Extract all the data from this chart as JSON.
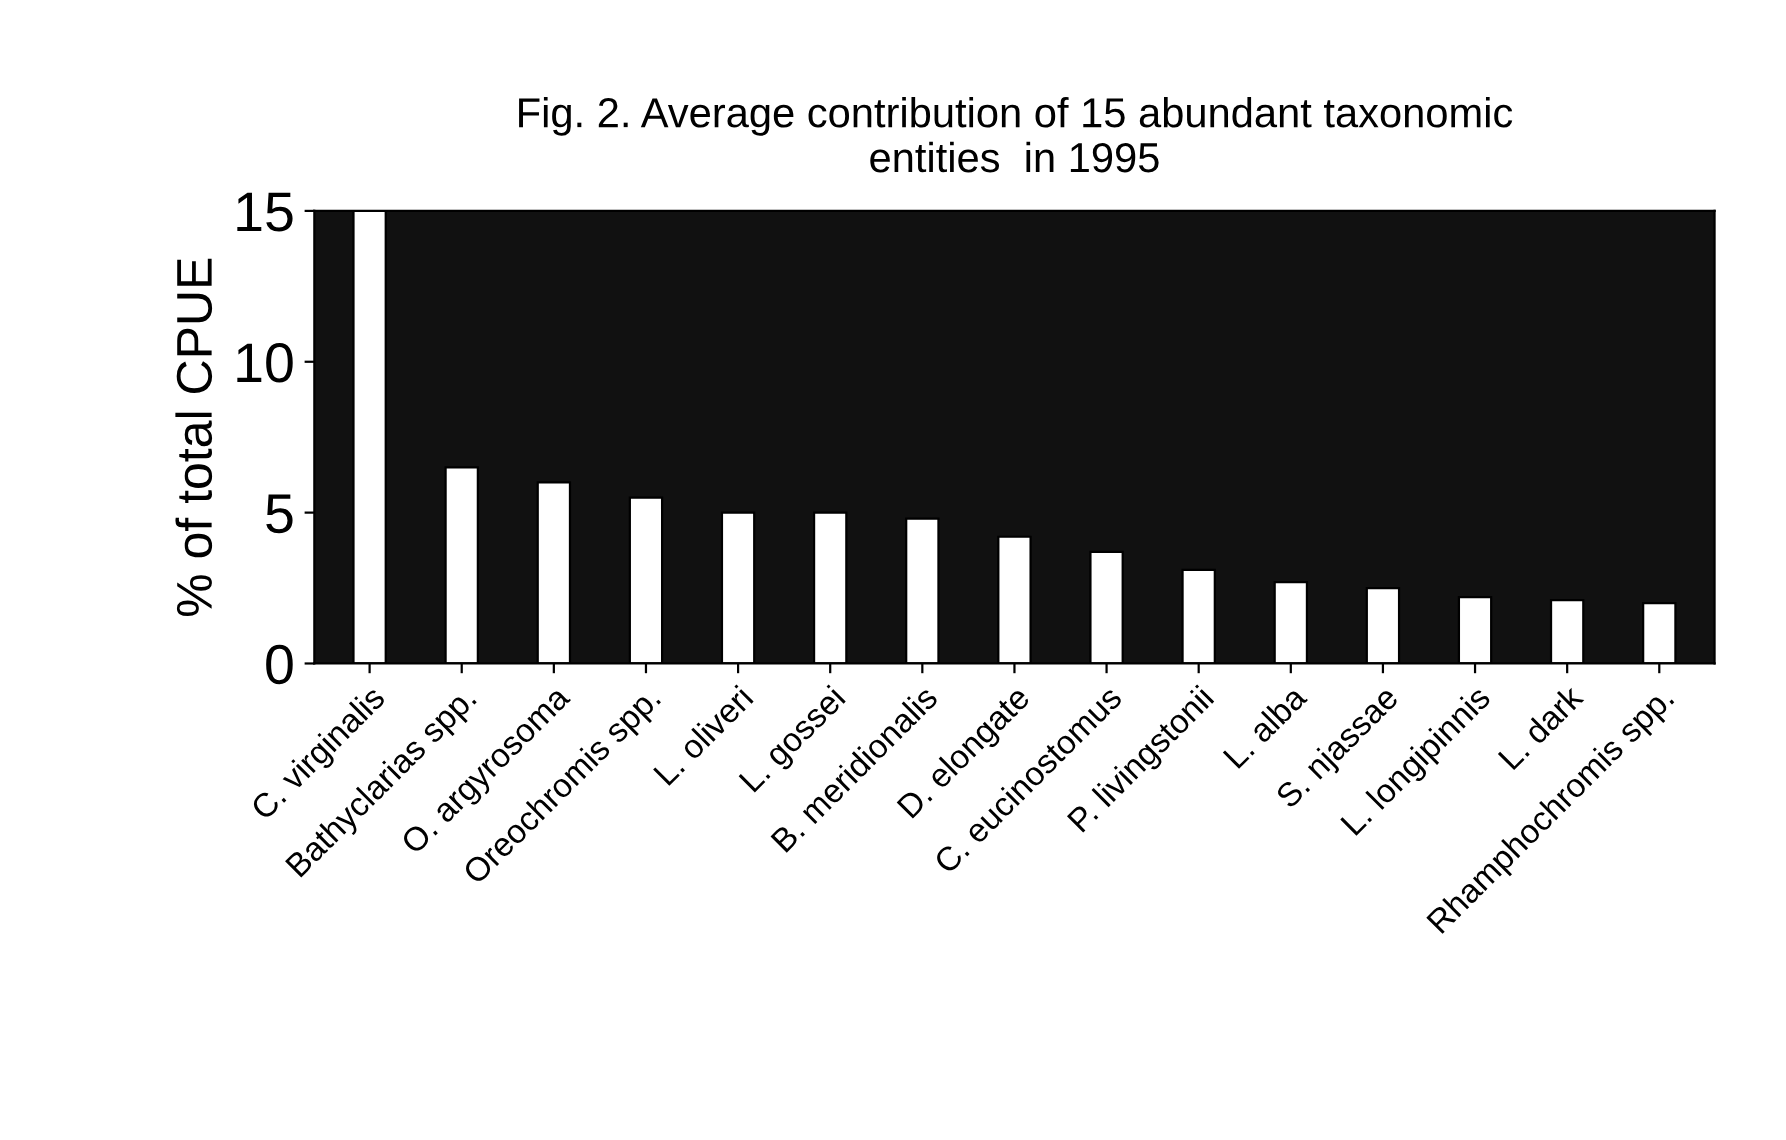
{
  "chart_data": {
    "type": "bar",
    "title": "Fig. 2. Average contribution of 15 abundant taxonomic\nentities  in 1995",
    "ylabel": "% of total CPUE",
    "categories": [
      "C. virginalis",
      "Bathyclarias spp.",
      "O. argyrosoma",
      "Oreochromis spp.",
      "L. oliveri",
      "L. gossei",
      "B. meridionalis",
      "D. elongate",
      "C. eucinostomus",
      "P. livingstonii",
      "L. alba",
      "S. njassae",
      "L. longipinnis",
      "L. dark",
      "Rhamphochromis spp."
    ],
    "values": [
      15,
      6.5,
      6.0,
      5.5,
      5.0,
      5.0,
      4.8,
      4.2,
      3.7,
      3.1,
      2.7,
      2.5,
      2.2,
      2.1,
      2.0
    ],
    "color": "#ffffff",
    "ylim": [
      0,
      15
    ],
    "yticks": [
      0,
      5,
      10,
      15
    ],
    "grid": false
  }
}
